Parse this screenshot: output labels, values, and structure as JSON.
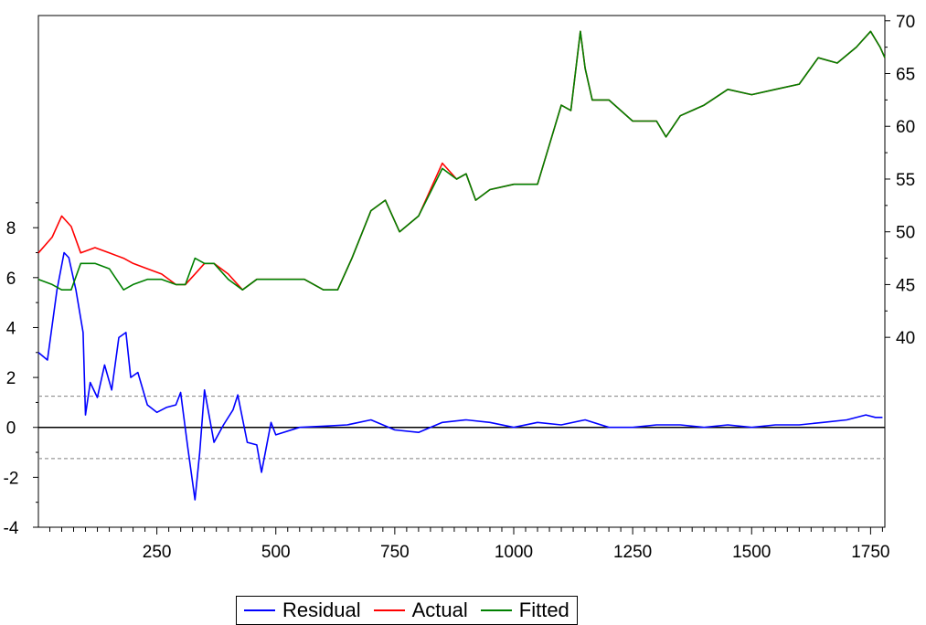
{
  "chart_data": {
    "type": "line",
    "title": "",
    "xlabel": "",
    "x_ticks": [
      250,
      500,
      750,
      1000,
      1250,
      1500,
      1750
    ],
    "xlim": [
      1,
      1780
    ],
    "left_axis": {
      "ticks": [
        -4,
        -2,
        0,
        2,
        4,
        6,
        8
      ],
      "ylim": [
        -4,
        16.5
      ]
    },
    "right_axis": {
      "ticks": [
        40,
        45,
        50,
        55,
        60,
        65,
        70
      ],
      "ylim": [
        22,
        70.5
      ]
    },
    "residual_bands": [
      1.25,
      -1.25
    ],
    "colors": {
      "residual": "#0000ff",
      "actual": "#ff0000",
      "fitted": "#008000",
      "zero_line": "#000000",
      "band_line": "#808080"
    },
    "series": [
      {
        "name": "Residual",
        "axis": "left",
        "x": [
          1,
          20,
          40,
          55,
          65,
          80,
          95,
          100,
          110,
          125,
          140,
          155,
          170,
          185,
          195,
          210,
          230,
          250,
          270,
          290,
          300,
          315,
          330,
          340,
          350,
          370,
          390,
          410,
          420,
          440,
          460,
          470,
          490,
          500,
          550,
          600,
          650,
          700,
          750,
          800,
          850,
          900,
          950,
          1000,
          1050,
          1100,
          1150,
          1200,
          1250,
          1300,
          1350,
          1400,
          1450,
          1500,
          1550,
          1600,
          1650,
          1700,
          1740,
          1760,
          1775
        ],
        "y": [
          3.0,
          2.7,
          5.5,
          7.0,
          6.8,
          5.5,
          3.8,
          0.5,
          1.8,
          1.2,
          2.5,
          1.5,
          3.6,
          3.8,
          2.0,
          2.2,
          0.9,
          0.6,
          0.8,
          0.9,
          1.4,
          -0.8,
          -2.9,
          -1.0,
          1.5,
          -0.6,
          0.1,
          0.7,
          1.3,
          -0.6,
          -0.7,
          -1.8,
          0.2,
          -0.3,
          0.0,
          0.05,
          0.1,
          0.3,
          -0.1,
          -0.2,
          0.2,
          0.3,
          0.2,
          0.0,
          0.2,
          0.1,
          0.3,
          0.0,
          0.0,
          0.1,
          0.1,
          0.0,
          0.1,
          0.0,
          0.1,
          0.1,
          0.2,
          0.3,
          0.5,
          0.4,
          0.4
        ]
      },
      {
        "name": "Actual",
        "axis": "right",
        "x": [
          1,
          30,
          50,
          70,
          90,
          120,
          150,
          180,
          200,
          230,
          260,
          290,
          310,
          330,
          350,
          370,
          400,
          430,
          460,
          490,
          520,
          560,
          600,
          630,
          660,
          700,
          730,
          760,
          800,
          850,
          880,
          900,
          920,
          950,
          1000,
          1050,
          1080,
          1100,
          1120,
          1140,
          1150,
          1165,
          1200,
          1250,
          1300,
          1320,
          1350,
          1400,
          1450,
          1500,
          1550,
          1600,
          1640,
          1680,
          1720,
          1750,
          1770,
          1780
        ],
        "y": [
          48.0,
          49.5,
          51.5,
          50.5,
          48.0,
          48.5,
          48.0,
          47.5,
          47.0,
          46.5,
          46.0,
          45.0,
          45.0,
          46.0,
          47.0,
          47.0,
          46.0,
          44.5,
          45.5,
          45.5,
          45.5,
          45.5,
          44.5,
          44.5,
          47.5,
          52.0,
          53.0,
          50.0,
          51.5,
          56.5,
          55.0,
          55.5,
          53.0,
          54.0,
          54.5,
          54.5,
          59.0,
          62.0,
          61.5,
          69.0,
          65.5,
          62.5,
          62.5,
          60.5,
          60.5,
          59.0,
          61.0,
          62.0,
          63.5,
          63.0,
          63.5,
          64.0,
          66.5,
          66.0,
          67.5,
          69.0,
          67.5,
          66.5
        ]
      },
      {
        "name": "Fitted",
        "axis": "right",
        "x": [
          1,
          30,
          50,
          70,
          90,
          120,
          150,
          180,
          200,
          230,
          260,
          290,
          310,
          330,
          350,
          370,
          400,
          430,
          460,
          490,
          520,
          560,
          600,
          630,
          660,
          700,
          730,
          760,
          800,
          850,
          880,
          900,
          920,
          950,
          1000,
          1050,
          1080,
          1100,
          1120,
          1140,
          1150,
          1165,
          1200,
          1250,
          1300,
          1320,
          1350,
          1400,
          1450,
          1500,
          1550,
          1600,
          1640,
          1680,
          1720,
          1750,
          1770,
          1780
        ],
        "y": [
          45.5,
          45.0,
          44.5,
          44.5,
          47.0,
          47.0,
          46.5,
          44.5,
          45.0,
          45.5,
          45.5,
          45.0,
          45.0,
          47.5,
          47.0,
          47.0,
          45.5,
          44.5,
          45.5,
          45.5,
          45.5,
          45.5,
          44.5,
          44.5,
          47.5,
          52.0,
          53.0,
          50.0,
          51.5,
          56.0,
          55.0,
          55.5,
          53.0,
          54.0,
          54.5,
          54.5,
          59.0,
          62.0,
          61.5,
          69.0,
          65.5,
          62.5,
          62.5,
          60.5,
          60.5,
          59.0,
          61.0,
          62.0,
          63.5,
          63.0,
          63.5,
          64.0,
          66.5,
          66.0,
          67.5,
          69.0,
          67.5,
          66.5
        ]
      }
    ],
    "legend": {
      "position": "bottom",
      "items": [
        "Residual",
        "Actual",
        "Fitted"
      ]
    }
  }
}
